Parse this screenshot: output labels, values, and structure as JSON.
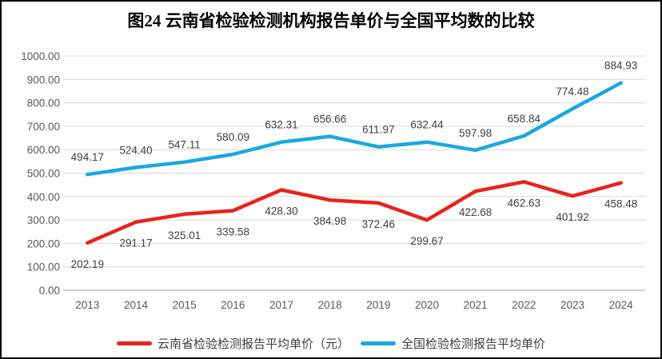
{
  "chart_data": {
    "type": "line",
    "title": "图24 云南省检验检测机构报告单价与全国平均数的比较",
    "categories": [
      "2013",
      "2014",
      "2015",
      "2016",
      "2017",
      "2018",
      "2019",
      "2020",
      "2021",
      "2022",
      "2023",
      "2024"
    ],
    "series": [
      {
        "name": "云南省检验检测报告平均单价（元）",
        "color": "#E8231C",
        "label_position": "below",
        "values": [
          202.19,
          291.17,
          325.01,
          339.58,
          428.3,
          384.98,
          372.46,
          299.67,
          422.68,
          462.63,
          401.92,
          458.48
        ]
      },
      {
        "name": "全国检验检测报告平均单价",
        "color": "#1BA8E0",
        "label_position": "above",
        "values": [
          494.17,
          524.4,
          547.11,
          580.09,
          632.31,
          656.66,
          611.97,
          632.44,
          597.98,
          658.84,
          774.48,
          884.93
        ]
      }
    ],
    "xlabel": "",
    "ylabel": "",
    "ylim": [
      0,
      1000
    ],
    "ytick_step": 100,
    "ytick_decimals": 2,
    "grid": true,
    "legend_position": "bottom",
    "colors": {
      "gridline": "#D9D9D9",
      "axis_line": "#C4C4C4",
      "tick_text": "#595959",
      "data_label_text": "#404040",
      "title_text": "#000000",
      "legend_text": "#404040"
    }
  }
}
